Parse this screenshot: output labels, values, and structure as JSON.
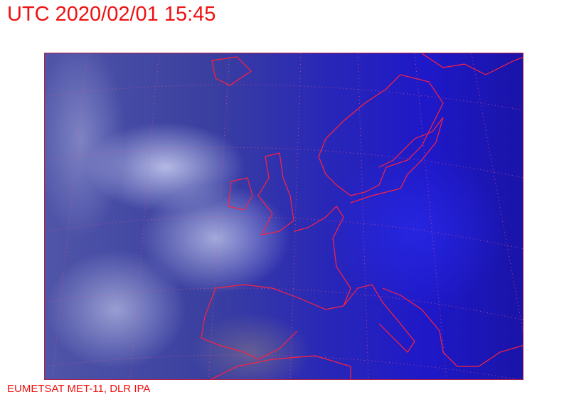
{
  "title": "UTC 2020/02/01 15:45",
  "credit": "EUMETSAT MET-11, DLR IPA",
  "colors": {
    "text": "#ee1111",
    "coastline": "#ff2040",
    "grid": "#e0508a"
  },
  "map": {
    "image": "satellite-rgb-europe",
    "overlay": [
      "coastlines",
      "lat-lon-grid"
    ]
  }
}
